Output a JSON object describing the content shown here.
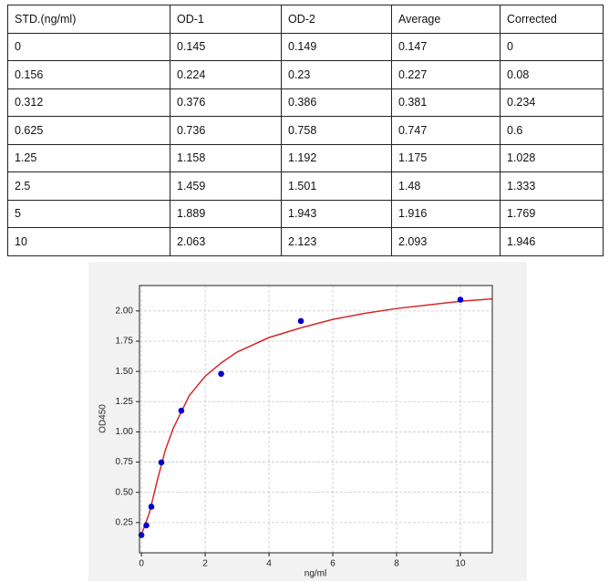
{
  "table": {
    "header": [
      "STD.(ng/ml)",
      "OD-1",
      "OD-2",
      "Average",
      "Corrected"
    ],
    "rows": [
      [
        "0",
        "0.145",
        "0.149",
        "0.147",
        "0"
      ],
      [
        "0.156",
        "0.224",
        "0.23",
        "0.227",
        "0.08"
      ],
      [
        "0.312",
        "0.376",
        "0.386",
        "0.381",
        "0.234"
      ],
      [
        "0.625",
        "0.736",
        "0.758",
        "0.747",
        "0.6"
      ],
      [
        "1.25",
        "1.158",
        "1.192",
        "1.175",
        "1.028"
      ],
      [
        "2.5",
        "1.459",
        "1.501",
        "1.48",
        "1.333"
      ],
      [
        "5",
        "1.889",
        "1.943",
        "1.916",
        "1.769"
      ],
      [
        "10",
        "2.063",
        "2.123",
        "2.093",
        "1.946"
      ]
    ]
  },
  "chart_data": {
    "type": "scatter",
    "x_label": "ng/ml",
    "y_label": "OD450",
    "xlim": [
      -0.06,
      11
    ],
    "ylim": [
      0,
      2.21
    ],
    "xticks": [
      0,
      2,
      4,
      6,
      8,
      10
    ],
    "yticks": [
      0.25,
      {
        "value": 0.5,
        "label": "0.50"
      },
      0.75,
      {
        "value": 1,
        "label": "1.00"
      },
      1.25,
      {
        "value": 1.5,
        "label": "1.50"
      },
      1.75,
      {
        "value": 2,
        "label": "2.00"
      }
    ],
    "grid": true,
    "series": [
      {
        "mode": "markers",
        "color": "#0000cc",
        "x": [
          0,
          0.156,
          0.312,
          0.625,
          1.25,
          2.5,
          5,
          10
        ],
        "values": [
          0.147,
          0.227,
          0.381,
          0.747,
          1.175,
          1.48,
          1.916,
          2.093
        ]
      },
      {
        "mode": "line",
        "color": "#d62728",
        "x": [
          0,
          0.25,
          0.5,
          0.75,
          1,
          1.5,
          2,
          2.5,
          3,
          4,
          5,
          6,
          7,
          8,
          9,
          10,
          11
        ],
        "values": [
          0.15,
          0.33,
          0.6,
          0.85,
          1.03,
          1.3,
          1.46,
          1.57,
          1.66,
          1.78,
          1.86,
          1.93,
          1.98,
          2.02,
          2.05,
          2.08,
          2.1
        ]
      }
    ]
  }
}
